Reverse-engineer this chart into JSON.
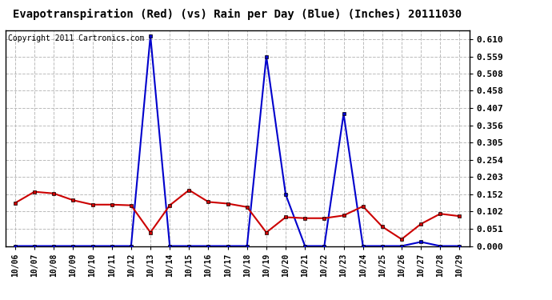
{
  "title": "Evapotranspiration (Red) (vs) Rain per Day (Blue) (Inches) 20111030",
  "copyright": "Copyright 2011 Cartronics.com",
  "dates": [
    "10/06",
    "10/07",
    "10/08",
    "10/09",
    "10/10",
    "10/11",
    "10/12",
    "10/13",
    "10/14",
    "10/15",
    "10/16",
    "10/17",
    "10/18",
    "10/19",
    "10/20",
    "10/21",
    "10/22",
    "10/23",
    "10/24",
    "10/25",
    "10/26",
    "10/27",
    "10/28",
    "10/29"
  ],
  "rain": [
    0.0,
    0.0,
    0.0,
    0.0,
    0.0,
    0.0,
    0.0,
    0.62,
    0.0,
    0.0,
    0.0,
    0.0,
    0.0,
    0.559,
    0.152,
    0.0,
    0.0,
    0.39,
    0.0,
    0.0,
    0.0,
    0.012,
    0.0,
    0.0
  ],
  "et": [
    0.127,
    0.16,
    0.155,
    0.135,
    0.122,
    0.122,
    0.12,
    0.04,
    0.12,
    0.165,
    0.13,
    0.125,
    0.115,
    0.04,
    0.085,
    0.082,
    0.082,
    0.09,
    0.117,
    0.057,
    0.02,
    0.065,
    0.095,
    0.088
  ],
  "ylim": [
    0.0,
    0.637
  ],
  "yticks": [
    0.0,
    0.051,
    0.102,
    0.152,
    0.203,
    0.254,
    0.305,
    0.356,
    0.407,
    0.458,
    0.508,
    0.559,
    0.61
  ],
  "blue_color": "#0000cc",
  "red_color": "#cc0000",
  "grid_color": "#bbbbbb",
  "bg_color": "#ffffff",
  "title_fontsize": 10,
  "copyright_fontsize": 7,
  "tick_fontsize": 8,
  "xtick_fontsize": 7
}
